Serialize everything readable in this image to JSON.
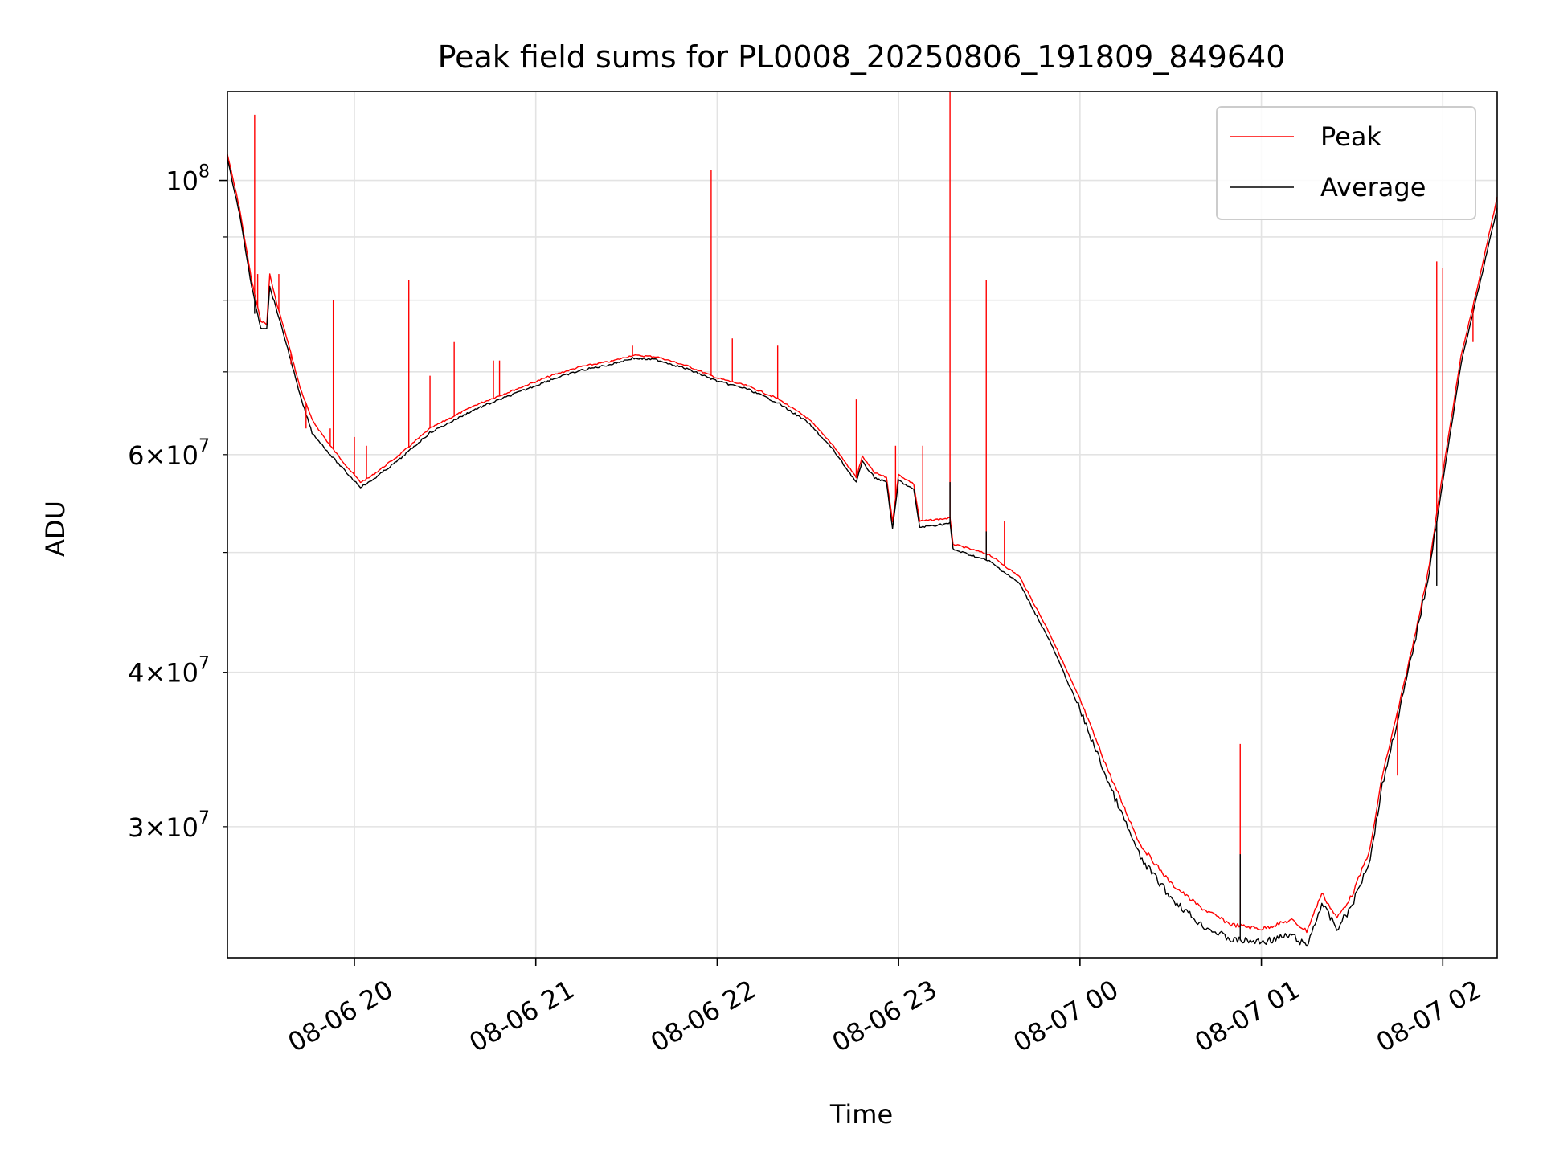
{
  "chart_data": {
    "type": "line",
    "title": "Peak field sums for PL0008_20250806_191809_849640",
    "xlabel": "Time",
    "ylabel": "ADU",
    "yscale": "log",
    "grid": true,
    "legend_position": "top-right",
    "xlim": [
      "2025-08-06 19:18",
      "2025-08-07 02:18"
    ],
    "ylim": [
      23500000,
      118000000
    ],
    "x_ticks": [
      {
        "value": "2025-08-06 20:00",
        "label": "08-06 20"
      },
      {
        "value": "2025-08-06 21:00",
        "label": "08-06 21"
      },
      {
        "value": "2025-08-06 22:00",
        "label": "08-06 22"
      },
      {
        "value": "2025-08-06 23:00",
        "label": "08-06 23"
      },
      {
        "value": "2025-08-07 00:00",
        "label": "08-07 00"
      },
      {
        "value": "2025-08-07 01:00",
        "label": "08-07 01"
      },
      {
        "value": "2025-08-07 02:00",
        "label": "08-07 02"
      }
    ],
    "y_ticks_major": [
      {
        "value": 100000000,
        "base": "10",
        "exp": "8"
      }
    ],
    "y_ticks_minor": [
      {
        "value": 30000000,
        "coef": "3",
        "base": "10",
        "exp": "7"
      },
      {
        "value": 40000000,
        "coef": "4",
        "base": "10",
        "exp": "7"
      },
      {
        "value": 60000000,
        "coef": "6",
        "base": "10",
        "exp": "7"
      }
    ],
    "y_minor_unlabeled": [
      50000000,
      70000000,
      80000000,
      90000000
    ],
    "series": [
      {
        "name": "Peak",
        "color": "#ff0000",
        "line_width": 1,
        "points": [
          [
            "2025-08-06 19:18",
            105000000
          ],
          [
            "2025-08-06 19:22",
            95000000
          ],
          [
            "2025-08-06 19:26",
            83000000
          ],
          [
            "2025-08-06 19:29",
            77000000
          ],
          [
            "2025-08-06 19:31",
            76500000
          ],
          [
            "2025-08-06 19:32",
            84000000
          ],
          [
            "2025-08-06 19:34",
            80000000
          ],
          [
            "2025-08-06 19:38",
            74000000
          ],
          [
            "2025-08-06 19:42",
            68000000
          ],
          [
            "2025-08-06 19:46",
            64000000
          ],
          [
            "2025-08-06 19:52",
            61000000
          ],
          [
            "2025-08-06 19:58",
            58500000
          ],
          [
            "2025-08-06 20:02",
            57000000
          ],
          [
            "2025-08-06 20:05",
            57500000
          ],
          [
            "2025-08-06 20:15",
            60000000
          ],
          [
            "2025-08-06 20:25",
            63000000
          ],
          [
            "2025-08-06 20:40",
            65800000
          ],
          [
            "2025-08-06 20:55",
            68000000
          ],
          [
            "2025-08-06 21:05",
            69500000
          ],
          [
            "2025-08-06 21:15",
            70700000
          ],
          [
            "2025-08-06 21:25",
            71400000
          ],
          [
            "2025-08-06 21:32",
            72200000
          ],
          [
            "2025-08-06 21:40",
            72000000
          ],
          [
            "2025-08-06 21:50",
            70800000
          ],
          [
            "2025-08-06 22:00",
            69200000
          ],
          [
            "2025-08-06 22:10",
            68200000
          ],
          [
            "2025-08-06 22:20",
            66600000
          ],
          [
            "2025-08-06 22:30",
            64200000
          ],
          [
            "2025-08-06 22:38",
            61200000
          ],
          [
            "2025-08-06 22:46",
            57500000
          ],
          [
            "2025-08-06 22:48",
            59800000
          ],
          [
            "2025-08-06 22:52",
            58000000
          ],
          [
            "2025-08-06 22:56",
            57500000
          ],
          [
            "2025-08-06 22:58",
            53000000
          ],
          [
            "2025-08-06 23:00",
            57800000
          ],
          [
            "2025-08-06 23:05",
            56800000
          ],
          [
            "2025-08-06 23:07",
            53000000
          ],
          [
            "2025-08-06 23:17",
            53300000
          ],
          [
            "2025-08-06 23:18",
            50800000
          ],
          [
            "2025-08-06 23:30",
            49800000
          ],
          [
            "2025-08-06 23:40",
            47800000
          ],
          [
            "2025-08-06 23:50",
            43000000
          ],
          [
            "2025-08-07 00:00",
            38000000
          ],
          [
            "2025-08-07 00:10",
            33000000
          ],
          [
            "2025-08-07 00:20",
            29000000
          ],
          [
            "2025-08-07 00:30",
            27000000
          ],
          [
            "2025-08-07 00:40",
            25800000
          ],
          [
            "2025-08-07 00:50",
            25000000
          ],
          [
            "2025-08-07 01:00",
            24800000
          ],
          [
            "2025-08-07 01:10",
            25200000
          ],
          [
            "2025-08-07 01:15",
            24700000
          ],
          [
            "2025-08-07 01:20",
            26500000
          ],
          [
            "2025-08-07 01:25",
            25300000
          ],
          [
            "2025-08-07 01:30",
            26400000
          ],
          [
            "2025-08-07 01:36",
            28800000
          ],
          [
            "2025-08-07 01:40",
            33000000
          ],
          [
            "2025-08-07 01:46",
            38000000
          ],
          [
            "2025-08-07 01:50",
            42000000
          ],
          [
            "2025-08-07 01:55",
            48000000
          ],
          [
            "2025-08-07 02:00",
            58000000
          ],
          [
            "2025-08-07 02:06",
            72000000
          ],
          [
            "2025-08-07 02:12",
            83000000
          ],
          [
            "2025-08-07 02:18",
            97000000
          ]
        ],
        "spikes": [
          [
            "2025-08-06 19:27",
            113000000
          ],
          [
            "2025-08-06 19:28",
            84000000
          ],
          [
            "2025-08-06 19:35",
            84000000
          ],
          [
            "2025-08-06 19:39",
            71000000
          ],
          [
            "2025-08-06 19:41",
            69500000
          ],
          [
            "2025-08-06 19:44",
            63000000
          ],
          [
            "2025-08-06 19:52",
            63000000
          ],
          [
            "2025-08-06 19:53",
            80000000
          ],
          [
            "2025-08-06 20:00",
            62000000
          ],
          [
            "2025-08-06 20:04",
            61000000
          ],
          [
            "2025-08-06 20:18",
            83000000
          ],
          [
            "2025-08-06 20:25",
            69500000
          ],
          [
            "2025-08-06 20:33",
            74000000
          ],
          [
            "2025-08-06 20:46",
            71500000
          ],
          [
            "2025-08-06 20:48",
            71500000
          ],
          [
            "2025-08-06 21:32",
            73500000
          ],
          [
            "2025-08-06 21:58",
            102000000
          ],
          [
            "2025-08-06 22:05",
            74500000
          ],
          [
            "2025-08-06 22:20",
            73500000
          ],
          [
            "2025-08-06 22:46",
            66500000
          ],
          [
            "2025-08-06 22:59",
            61000000
          ],
          [
            "2025-08-06 23:08",
            61000000
          ],
          [
            "2025-08-06 23:17",
            118000000
          ],
          [
            "2025-08-06 23:29",
            83000000
          ],
          [
            "2025-08-06 23:35",
            53000000
          ],
          [
            "2025-08-07 00:53",
            35000000
          ],
          [
            "2025-08-07 01:45",
            33000000
          ],
          [
            "2025-08-07 01:58",
            86000000
          ],
          [
            "2025-08-07 02:00",
            85000000
          ],
          [
            "2025-08-07 02:10",
            74000000
          ]
        ]
      },
      {
        "name": "Average",
        "color": "#000000",
        "line_width": 1,
        "points": [
          [
            "2025-08-06 19:18",
            104000000
          ],
          [
            "2025-08-06 19:22",
            94000000
          ],
          [
            "2025-08-06 19:26",
            82000000
          ],
          [
            "2025-08-06 19:29",
            76000000
          ],
          [
            "2025-08-06 19:31",
            76000000
          ],
          [
            "2025-08-06 19:32",
            82000000
          ],
          [
            "2025-08-06 19:34",
            79000000
          ],
          [
            "2025-08-06 19:38",
            73000000
          ],
          [
            "2025-08-06 19:42",
            67000000
          ],
          [
            "2025-08-06 19:46",
            62500000
          ],
          [
            "2025-08-06 19:52",
            60000000
          ],
          [
            "2025-08-06 19:58",
            57800000
          ],
          [
            "2025-08-06 20:02",
            56500000
          ],
          [
            "2025-08-06 20:05",
            57000000
          ],
          [
            "2025-08-06 20:15",
            59500000
          ],
          [
            "2025-08-06 20:25",
            62500000
          ],
          [
            "2025-08-06 20:40",
            65300000
          ],
          [
            "2025-08-06 20:55",
            67500000
          ],
          [
            "2025-08-06 21:05",
            69000000
          ],
          [
            "2025-08-06 21:15",
            70200000
          ],
          [
            "2025-08-06 21:25",
            71000000
          ],
          [
            "2025-08-06 21:32",
            71800000
          ],
          [
            "2025-08-06 21:40",
            71600000
          ],
          [
            "2025-08-06 21:50",
            70400000
          ],
          [
            "2025-08-06 22:00",
            68800000
          ],
          [
            "2025-08-06 22:10",
            67800000
          ],
          [
            "2025-08-06 22:20",
            66100000
          ],
          [
            "2025-08-06 22:30",
            63700000
          ],
          [
            "2025-08-06 22:38",
            60700000
          ],
          [
            "2025-08-06 22:46",
            57000000
          ],
          [
            "2025-08-06 22:48",
            59200000
          ],
          [
            "2025-08-06 22:52",
            57500000
          ],
          [
            "2025-08-06 22:56",
            57000000
          ],
          [
            "2025-08-06 22:58",
            52200000
          ],
          [
            "2025-08-06 23:00",
            57200000
          ],
          [
            "2025-08-06 23:05",
            56200000
          ],
          [
            "2025-08-06 23:07",
            52400000
          ],
          [
            "2025-08-06 23:17",
            52800000
          ],
          [
            "2025-08-06 23:18",
            50300000
          ],
          [
            "2025-08-06 23:30",
            49200000
          ],
          [
            "2025-08-06 23:40",
            47200000
          ],
          [
            "2025-08-06 23:50",
            42400000
          ],
          [
            "2025-08-07 00:00",
            37300000
          ],
          [
            "2025-08-07 00:10",
            32300000
          ],
          [
            "2025-08-07 00:20",
            28300000
          ],
          [
            "2025-08-07 00:30",
            26300000
          ],
          [
            "2025-08-07 00:40",
            25000000
          ],
          [
            "2025-08-07 00:50",
            24300000
          ],
          [
            "2025-08-07 01:00",
            24200000
          ],
          [
            "2025-08-07 01:10",
            24500000
          ],
          [
            "2025-08-07 01:15",
            24000000
          ],
          [
            "2025-08-07 01:20",
            26000000
          ],
          [
            "2025-08-07 01:25",
            24800000
          ],
          [
            "2025-08-07 01:30",
            25900000
          ],
          [
            "2025-08-07 01:36",
            28300000
          ],
          [
            "2025-08-07 01:40",
            32400000
          ],
          [
            "2025-08-07 01:46",
            37500000
          ],
          [
            "2025-08-07 01:50",
            41500000
          ],
          [
            "2025-08-07 01:55",
            47500000
          ],
          [
            "2025-08-07 02:00",
            57000000
          ],
          [
            "2025-08-07 02:06",
            71000000
          ],
          [
            "2025-08-07 02:12",
            82000000
          ],
          [
            "2025-08-07 02:18",
            95000000
          ]
        ],
        "spikes": [
          [
            "2025-08-06 19:27",
            78000000
          ],
          [
            "2025-08-06 23:17",
            57000000
          ],
          [
            "2025-08-06 23:29",
            52000000
          ],
          [
            "2025-08-07 00:53",
            28500000
          ],
          [
            "2025-08-07 01:58",
            47000000
          ]
        ]
      }
    ]
  }
}
